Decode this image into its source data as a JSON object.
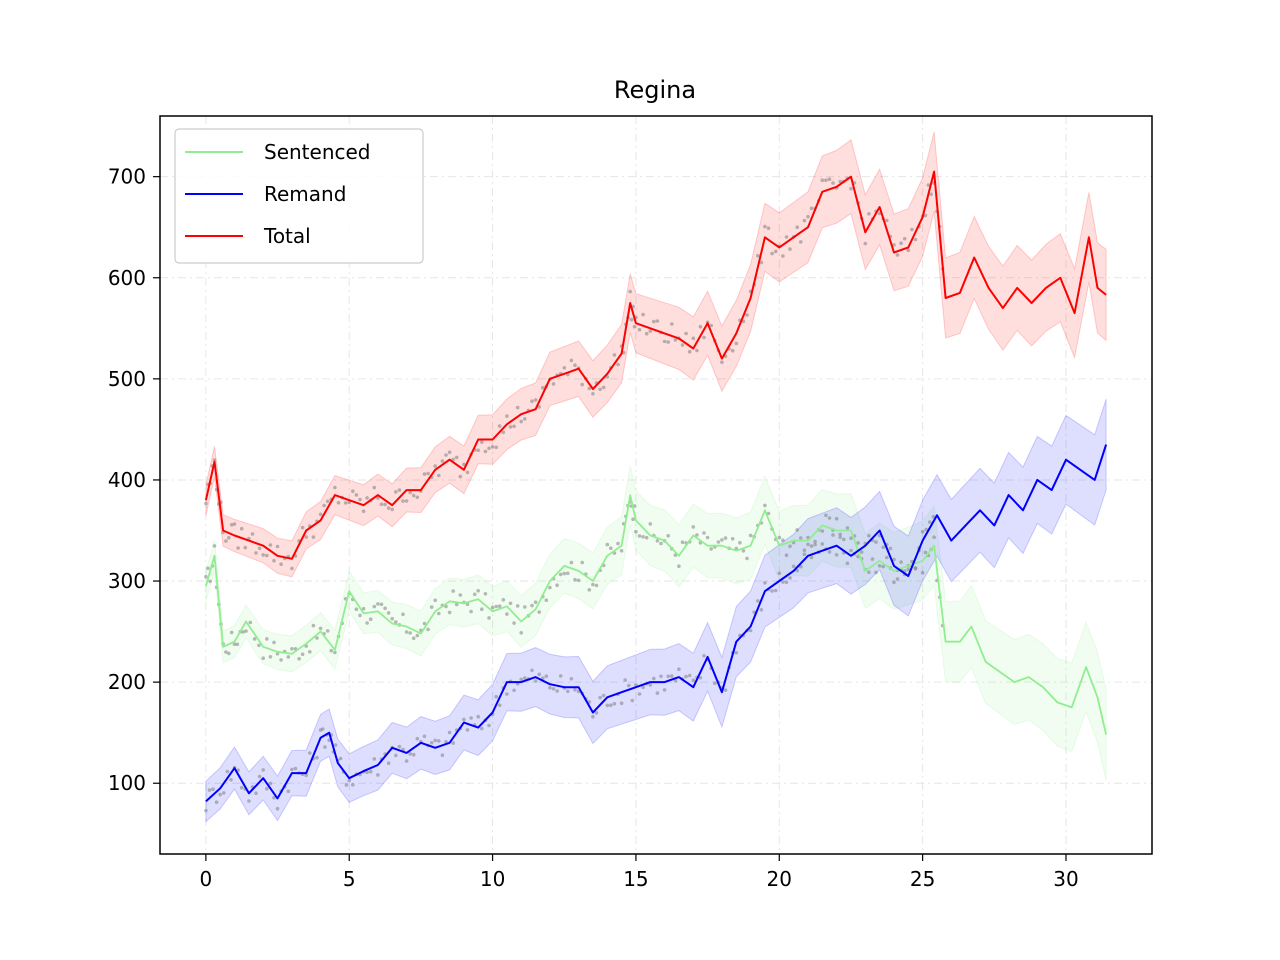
{
  "chart_data": {
    "type": "line",
    "title": "Regina",
    "xlabel": "",
    "ylabel": "",
    "xlim": [
      -1.6,
      33.0
    ],
    "ylim": [
      30,
      760
    ],
    "xticks": [
      0,
      5,
      10,
      15,
      20,
      25,
      30
    ],
    "yticks": [
      100,
      200,
      300,
      400,
      500,
      600,
      700
    ],
    "grid": true,
    "legend_position": "top-left",
    "series": [
      {
        "name": "Sentenced",
        "color": "#90ee90",
        "band_halfwidth_start": 15,
        "band_halfwidth_end": 45,
        "x": [
          0,
          0.3,
          0.6,
          1,
          1.4,
          2,
          2.5,
          3,
          3.5,
          4,
          4.5,
          5,
          5.5,
          6,
          6.5,
          7,
          7.5,
          8,
          8.5,
          9,
          9.5,
          10,
          10.5,
          11,
          11.5,
          12,
          12.5,
          13,
          13.5,
          14,
          14.5,
          14.8,
          15,
          15.5,
          16,
          16.5,
          17,
          17.5,
          18,
          18.5,
          19,
          19.5,
          20,
          20.5,
          21,
          21.5,
          22,
          22.5,
          23,
          23.5,
          24,
          24.5,
          25,
          25.4,
          25.8,
          26.3,
          26.7,
          27.2,
          27.7,
          28.2,
          28.7,
          29.2,
          29.7,
          30.2,
          30.7,
          31.1,
          31.4
        ],
        "y": [
          295,
          325,
          235,
          240,
          260,
          235,
          230,
          228,
          238,
          250,
          232,
          290,
          268,
          270,
          258,
          255,
          248,
          270,
          280,
          278,
          282,
          270,
          275,
          260,
          272,
          300,
          315,
          310,
          300,
          325,
          335,
          385,
          360,
          345,
          340,
          325,
          345,
          335,
          335,
          330,
          335,
          370,
          335,
          340,
          340,
          355,
          350,
          350,
          310,
          320,
          310,
          315,
          320,
          335,
          240,
          240,
          255,
          220,
          210,
          200,
          205,
          195,
          180,
          175,
          215,
          185,
          148
        ]
      },
      {
        "name": "Remand",
        "color": "#0000ff",
        "band_halfwidth_start": 20,
        "band_halfwidth_end": 45,
        "x": [
          0,
          0.5,
          1,
          1.5,
          2,
          2.5,
          3,
          3.5,
          4,
          4.3,
          4.6,
          5,
          5.5,
          6,
          6.5,
          7,
          7.5,
          8,
          8.5,
          9,
          9.5,
          10,
          10.5,
          11,
          11.5,
          12,
          12.5,
          13,
          13.5,
          14,
          14.5,
          15,
          15.5,
          16,
          16.5,
          17,
          17.5,
          18,
          18.5,
          19,
          19.5,
          20,
          20.5,
          21,
          21.5,
          22,
          22.5,
          23,
          23.5,
          24,
          24.5,
          25,
          25.5,
          26,
          26.5,
          27,
          27.5,
          28,
          28.5,
          29,
          29.5,
          30,
          30.5,
          31,
          31.4
        ],
        "y": [
          82,
          95,
          115,
          90,
          105,
          85,
          110,
          110,
          145,
          150,
          120,
          105,
          112,
          118,
          135,
          130,
          140,
          135,
          140,
          160,
          155,
          170,
          200,
          200,
          205,
          198,
          195,
          195,
          170,
          185,
          190,
          195,
          200,
          200,
          205,
          195,
          225,
          190,
          240,
          255,
          290,
          300,
          310,
          325,
          330,
          335,
          325,
          335,
          350,
          315,
          305,
          340,
          365,
          340,
          355,
          370,
          355,
          385,
          370,
          400,
          390,
          420,
          410,
          400,
          435
        ]
      },
      {
        "name": "Total",
        "color": "#ff0000",
        "band_halfwidth_start": 15,
        "band_halfwidth_end": 45,
        "x": [
          0,
          0.3,
          0.6,
          1,
          1.5,
          2,
          2.5,
          3,
          3.5,
          4,
          4.5,
          5,
          5.5,
          6,
          6.5,
          7,
          7.5,
          8,
          8.5,
          9,
          9.5,
          10,
          10.5,
          11,
          11.5,
          12,
          12.5,
          13,
          13.5,
          14,
          14.5,
          14.8,
          15,
          15.5,
          16,
          16.5,
          17,
          17.5,
          18,
          18.5,
          19,
          19.5,
          20,
          20.5,
          21,
          21.5,
          22,
          22.5,
          23,
          23.5,
          24,
          24.5,
          25,
          25.4,
          25.8,
          26.3,
          26.8,
          27.3,
          27.8,
          28.3,
          28.8,
          29.3,
          29.8,
          30.3,
          30.8,
          31.1,
          31.4
        ],
        "y": [
          380,
          418,
          350,
          345,
          340,
          335,
          325,
          322,
          350,
          360,
          385,
          380,
          375,
          385,
          375,
          390,
          390,
          410,
          420,
          410,
          440,
          440,
          455,
          465,
          470,
          500,
          505,
          510,
          490,
          505,
          525,
          575,
          555,
          550,
          545,
          540,
          530,
          555,
          520,
          545,
          580,
          640,
          630,
          640,
          650,
          685,
          690,
          700,
          645,
          670,
          625,
          630,
          660,
          705,
          580,
          585,
          620,
          590,
          570,
          590,
          575,
          590,
          600,
          565,
          640,
          590,
          583
        ]
      }
    ]
  }
}
